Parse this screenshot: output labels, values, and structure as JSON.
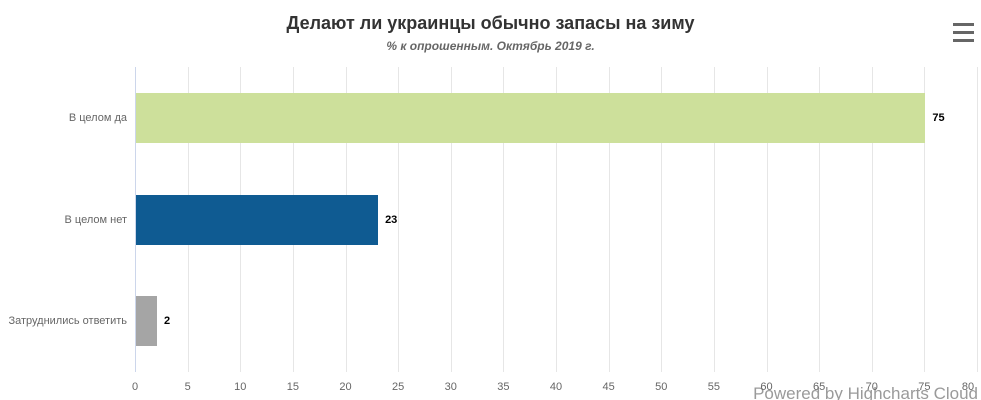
{
  "chart": {
    "title": "Делают ли украинцы обычно запасы на зиму",
    "subtitle": "% к опрошенным. Октябрь 2019 г."
  },
  "watermark": "Powered by Highcharts Cloud",
  "chart_data": {
    "type": "bar",
    "orientation": "horizontal",
    "title": "Делают ли украинцы обычно запасы на зиму",
    "subtitle": "% к опрошенным. Октябрь 2019 г.",
    "categories": [
      "В целом да",
      "В целом нет",
      "Затруднились ответить"
    ],
    "values": [
      75,
      23,
      2
    ],
    "data_labels": [
      "75",
      "23",
      "2"
    ],
    "bar_colors": [
      "#cde09b",
      "#0f5b92",
      "#a5a5a5"
    ],
    "xlabel": "",
    "ylabel": "",
    "xlim": [
      0,
      80
    ],
    "tick_interval": 5,
    "tick_labels": [
      "0",
      "5",
      "10",
      "15",
      "20",
      "25",
      "30",
      "35",
      "40",
      "45",
      "50",
      "55",
      "60",
      "65",
      "70",
      "75",
      "80"
    ],
    "grid": true,
    "legend": false
  },
  "colors": {
    "background": "#ffffff",
    "title": "#333333",
    "subtitle": "#666666",
    "grid": "#e6e6e6",
    "axis_line": "#ccd6eb",
    "tick_label": "#666666",
    "category_label": "#666666",
    "data_label": "#000000",
    "watermark": "#9a9a9a",
    "menu_icon": "#666666"
  }
}
